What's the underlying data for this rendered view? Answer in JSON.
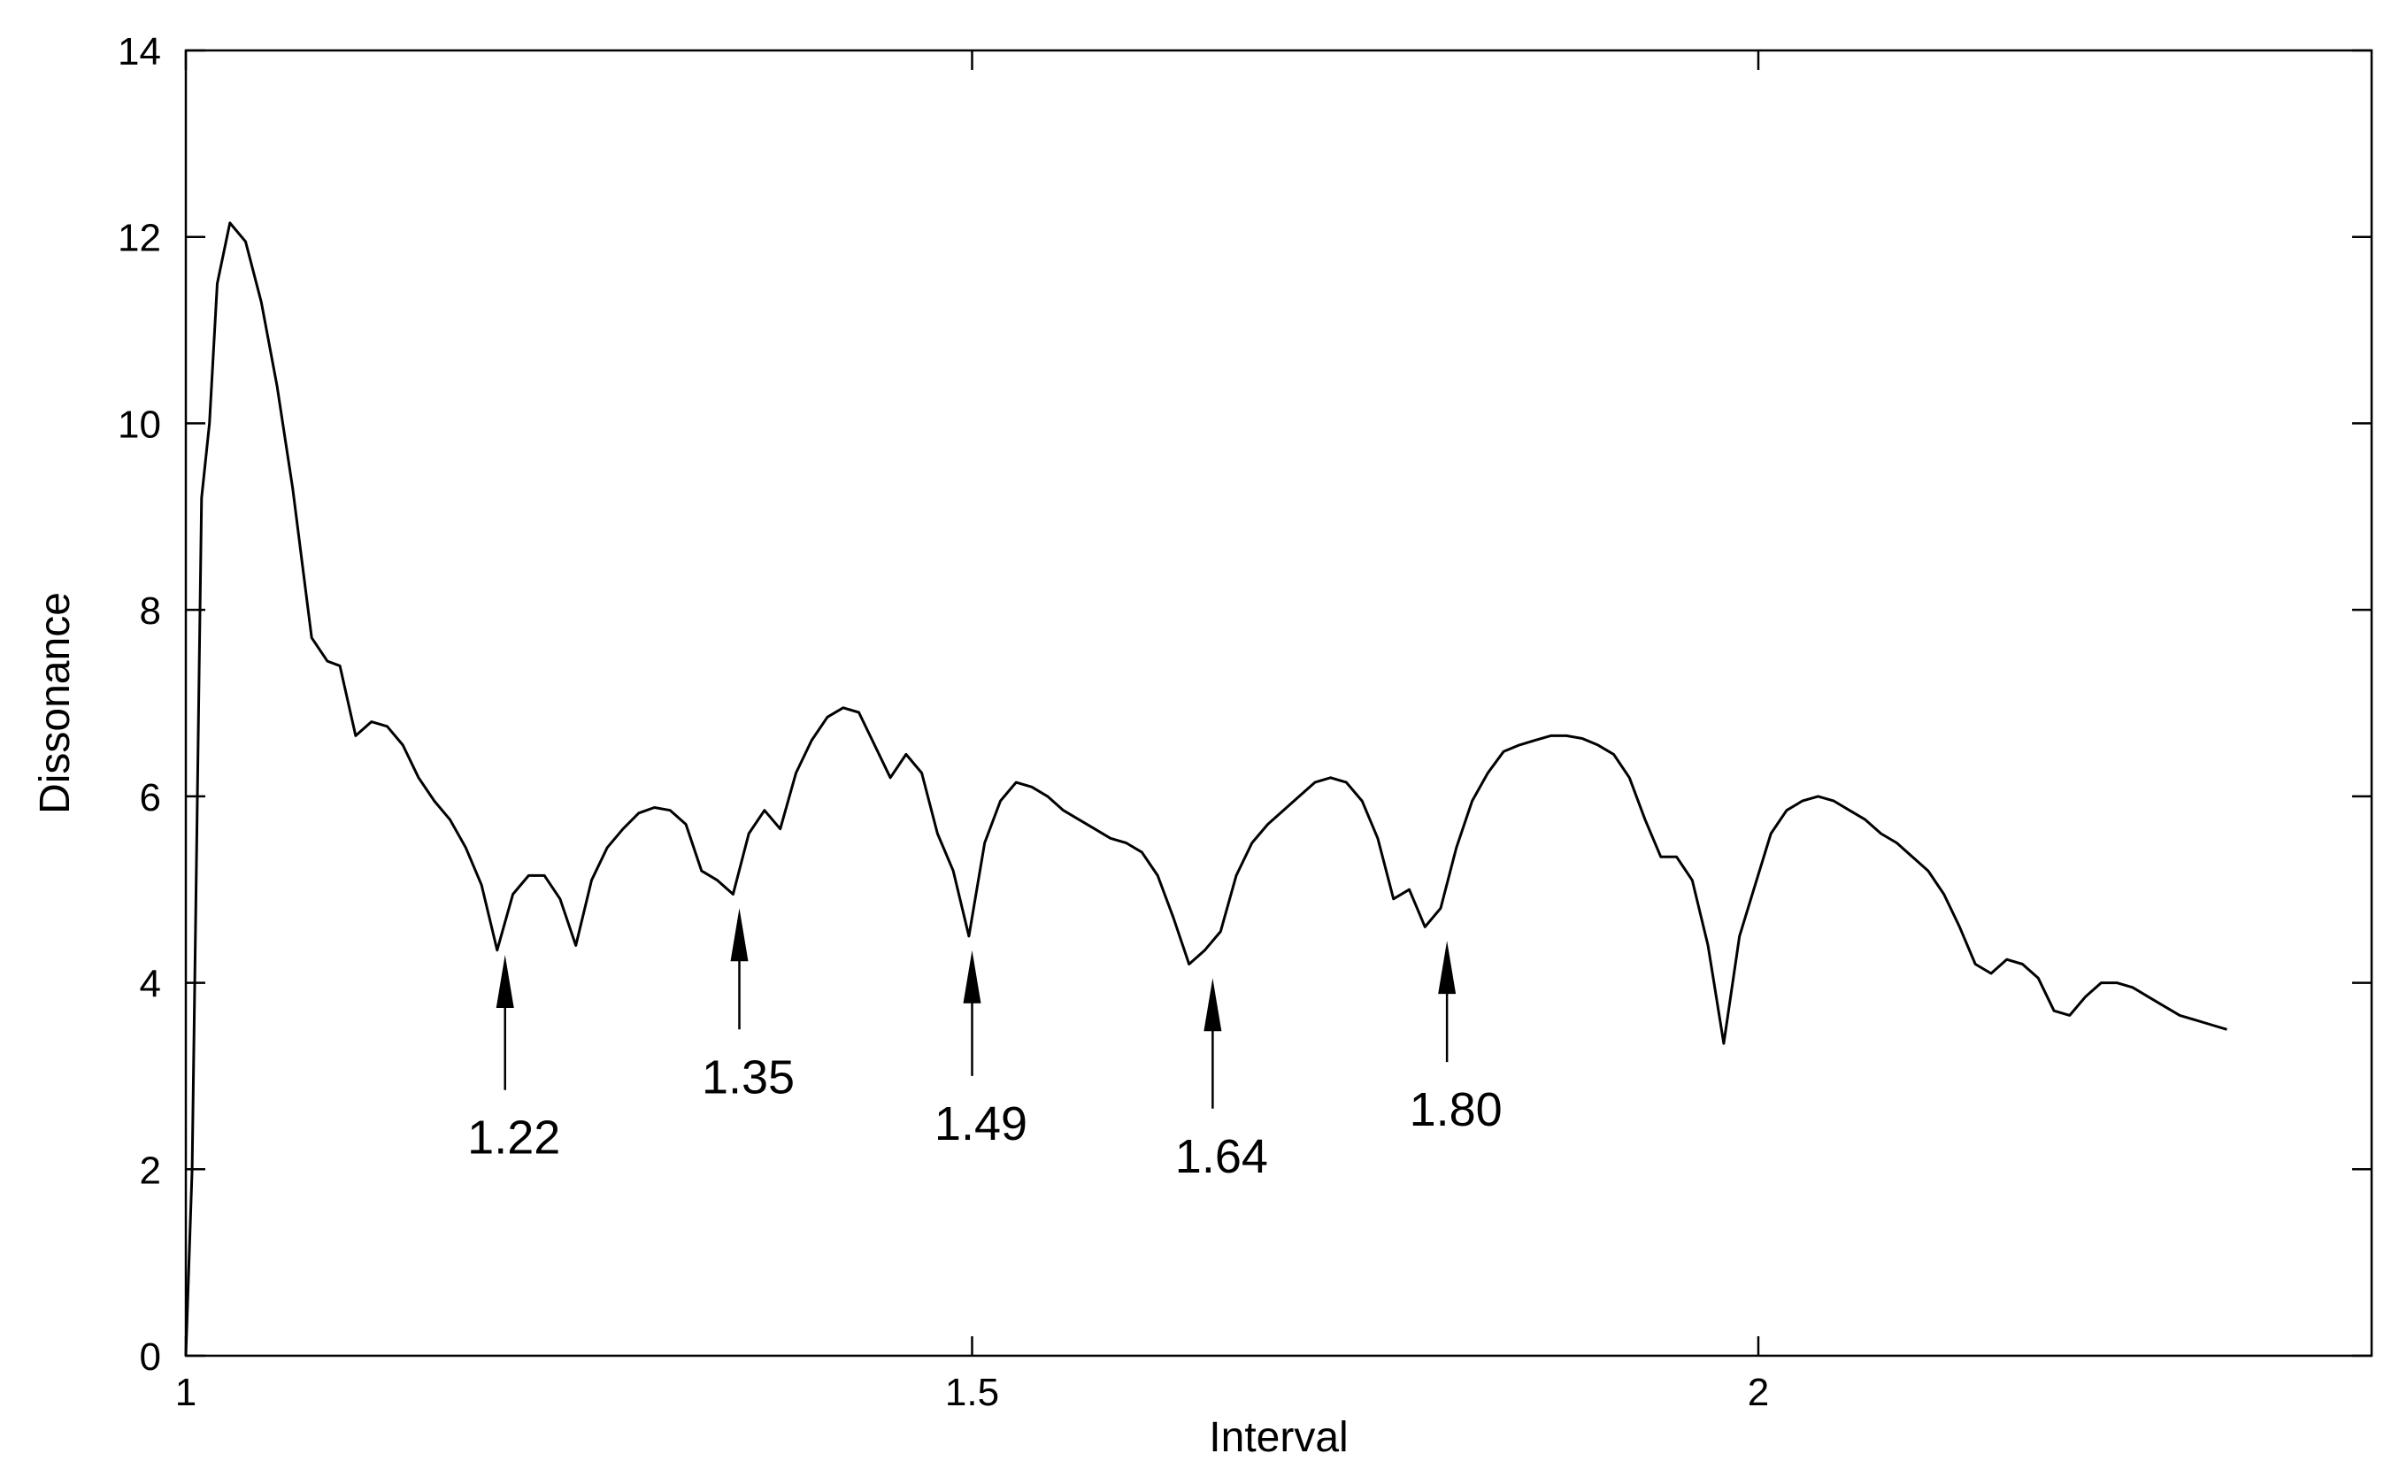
{
  "chart_data": {
    "type": "line",
    "title": "",
    "xlabel": "Interval",
    "ylabel": "Dissonance",
    "xlim": [
      1,
      2.39
    ],
    "ylim": [
      0,
      14
    ],
    "xticks": [
      1,
      1.5,
      2
    ],
    "xtick_labels": [
      "1",
      "1.5",
      "2"
    ],
    "yticks": [
      0,
      2,
      4,
      6,
      8,
      10,
      12,
      14
    ],
    "ytick_labels": [
      "0",
      "2",
      "4",
      "6",
      "8",
      "10",
      "12",
      "14"
    ],
    "grid": false,
    "legend": "none",
    "line_color": "#000000",
    "series": [
      {
        "x": [
          1.0,
          1.004,
          1.01,
          1.015,
          1.02,
          1.028,
          1.038,
          1.048,
          1.058,
          1.068,
          1.08,
          1.09,
          1.098,
          1.108,
          1.118,
          1.128,
          1.138,
          1.148,
          1.158,
          1.168,
          1.178,
          1.188,
          1.198,
          1.208,
          1.218,
          1.228,
          1.238,
          1.248,
          1.258,
          1.268,
          1.278,
          1.288,
          1.298,
          1.308,
          1.318,
          1.328,
          1.338,
          1.348,
          1.358,
          1.368,
          1.378,
          1.388,
          1.398,
          1.408,
          1.418,
          1.428,
          1.438,
          1.448,
          1.458,
          1.468,
          1.478,
          1.488,
          1.498,
          1.508,
          1.518,
          1.528,
          1.538,
          1.548,
          1.558,
          1.568,
          1.578,
          1.588,
          1.598,
          1.608,
          1.618,
          1.628,
          1.638,
          1.648,
          1.658,
          1.668,
          1.678,
          1.688,
          1.698,
          1.708,
          1.718,
          1.728,
          1.738,
          1.748,
          1.758,
          1.768,
          1.778,
          1.788,
          1.798,
          1.808,
          1.818,
          1.828,
          1.838,
          1.848,
          1.858,
          1.868,
          1.878,
          1.888,
          1.898,
          1.908,
          1.918,
          1.928,
          1.938,
          1.948,
          1.958,
          1.968,
          1.978,
          1.988,
          1.998,
          2.008,
          2.018,
          2.028,
          2.038,
          2.048,
          2.058,
          2.068,
          2.078,
          2.088,
          2.098,
          2.108,
          2.118,
          2.128,
          2.138,
          2.148,
          2.158,
          2.168,
          2.178,
          2.188,
          2.198,
          2.208,
          2.218,
          2.228,
          2.238,
          2.248,
          2.258,
          2.268,
          2.278,
          2.288,
          2.298
        ],
        "y": [
          0.0,
          2.0,
          9.2,
          10.0,
          11.5,
          12.15,
          11.95,
          11.3,
          10.4,
          9.3,
          7.7,
          7.45,
          7.4,
          6.65,
          6.8,
          6.75,
          6.55,
          6.2,
          5.95,
          5.75,
          5.45,
          5.05,
          4.35,
          4.95,
          5.15,
          5.15,
          4.9,
          4.4,
          5.1,
          5.45,
          5.65,
          5.82,
          5.88,
          5.85,
          5.7,
          5.2,
          5.1,
          4.95,
          5.6,
          5.85,
          5.65,
          6.25,
          6.6,
          6.85,
          6.95,
          6.9,
          6.55,
          6.2,
          6.45,
          6.25,
          5.6,
          5.2,
          4.5,
          5.5,
          5.95,
          6.15,
          6.1,
          6.0,
          5.85,
          5.75,
          5.65,
          5.55,
          5.5,
          5.4,
          5.15,
          4.7,
          4.2,
          4.35,
          4.55,
          5.15,
          5.5,
          5.7,
          5.85,
          6.0,
          6.15,
          6.2,
          6.15,
          5.95,
          5.55,
          4.9,
          5.0,
          4.6,
          4.8,
          5.45,
          5.95,
          6.25,
          6.48,
          6.55,
          6.6,
          6.65,
          6.65,
          6.62,
          6.55,
          6.45,
          6.2,
          5.75,
          5.35,
          5.35,
          5.1,
          4.4,
          3.35,
          4.5,
          5.05,
          5.6,
          5.85,
          5.95,
          6.0,
          5.95,
          5.85,
          5.75,
          5.6,
          5.5,
          5.35,
          5.2,
          4.95,
          4.6,
          4.2,
          4.1,
          4.25,
          4.2,
          4.05,
          3.7,
          3.65,
          3.85,
          4.0,
          4.0,
          3.95,
          3.85,
          3.75,
          3.65,
          3.6,
          3.55,
          3.5
        ]
      }
    ],
    "annotations": [
      {
        "label": "1.22",
        "x": 1.203,
        "tip_y": 4.3,
        "tail_y": 2.85
      },
      {
        "label": "1.35",
        "x": 1.352,
        "tip_y": 4.8,
        "tail_y": 3.5
      },
      {
        "label": "1.49",
        "x": 1.5,
        "tip_y": 4.35,
        "tail_y": 3.0
      },
      {
        "label": "1.64",
        "x": 1.653,
        "tip_y": 4.05,
        "tail_y": 2.65
      },
      {
        "label": "1.80",
        "x": 1.802,
        "tip_y": 4.45,
        "tail_y": 3.15
      }
    ]
  }
}
